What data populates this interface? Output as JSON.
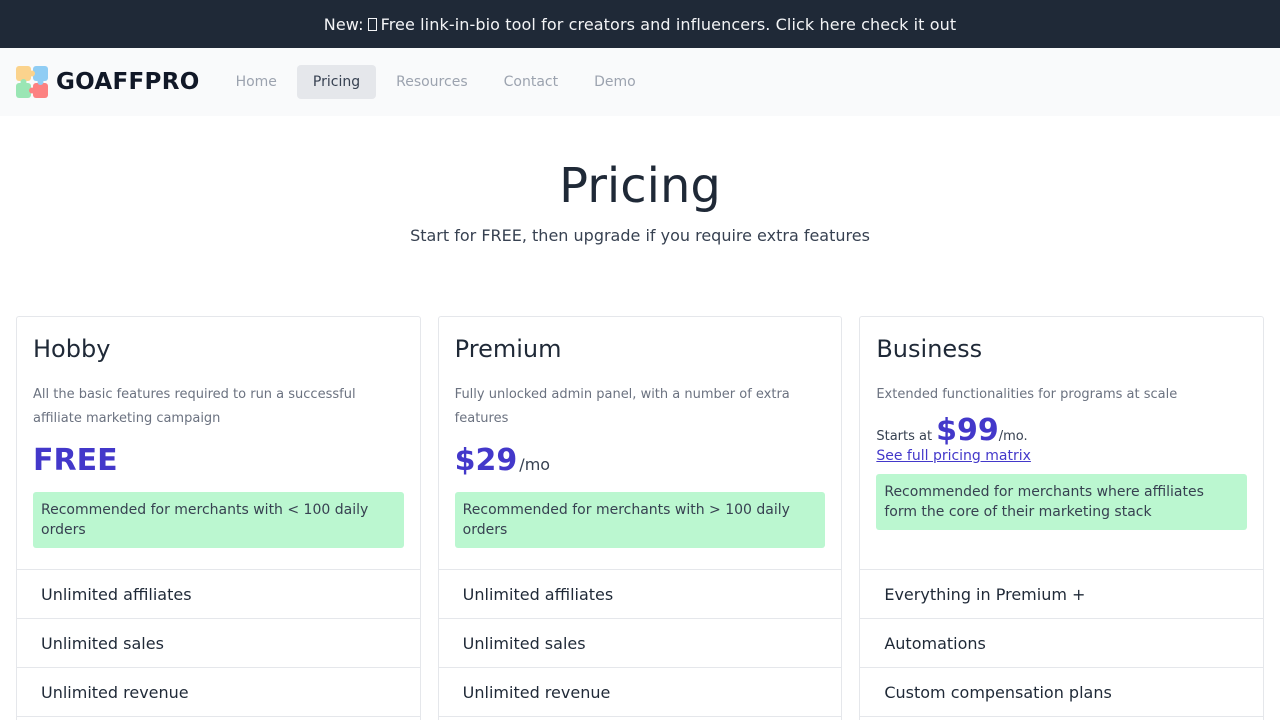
{
  "announcement": {
    "prefix": "New:",
    "text": "Free link-in-bio tool for creators and influencers. Click here check it out"
  },
  "brand": {
    "name": "GOAFFPRO",
    "logo_icon": "puzzle-logo-icon"
  },
  "nav": {
    "items": [
      {
        "label": "Home"
      },
      {
        "label": "Pricing",
        "active": true
      },
      {
        "label": "Resources"
      },
      {
        "label": "Contact"
      },
      {
        "label": "Demo"
      }
    ]
  },
  "hero": {
    "title": "Pricing",
    "subtitle": "Start for FREE, then upgrade if you require extra features"
  },
  "plans": {
    "hobby": {
      "name": "Hobby",
      "description": "All the basic features required to run a successful affiliate marketing campaign",
      "price": "FREE",
      "recommendation": "Recommended for merchants with < 100 daily orders",
      "features": [
        "Unlimited affiliates",
        "Unlimited sales",
        "Unlimited revenue"
      ]
    },
    "premium": {
      "name": "Premium",
      "description": "Fully unlocked admin panel, with a number of extra features",
      "price": "$29",
      "period": "/mo",
      "recommendation": "Recommended for merchants with > 100 daily orders",
      "features": [
        "Unlimited affiliates",
        "Unlimited sales",
        "Unlimited revenue"
      ]
    },
    "business": {
      "name": "Business",
      "description": "Extended functionalities for programs at scale",
      "starts_at": "Starts at",
      "price": "$99",
      "period": "/mo.",
      "matrix_link": "See full pricing matrix",
      "recommendation": "Recommended for merchants where affiliates form the core of their marketing stack",
      "features": [
        "Everything in Premium +",
        "Automations",
        "Custom compensation plans"
      ]
    }
  },
  "colors": {
    "accent": "#4338ca",
    "announce_bg": "#1f2937",
    "reco_bg": "#bbf7d0"
  }
}
